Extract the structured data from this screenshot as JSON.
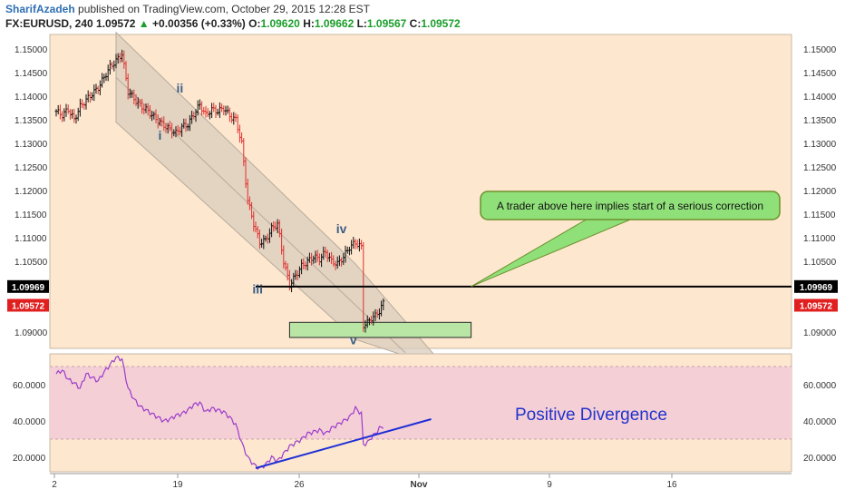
{
  "header": {
    "author": "SharifAzadeh",
    "published": "published on TradingView.com, October 29, 2015 12:28 EST",
    "symbol": "FX:EURUSD, 240",
    "last": "1.09572",
    "change_arrow": "▲",
    "change": "+0.00356 (+0.33%)",
    "o_label": "O:",
    "o_value": "1.09620",
    "h_label": "H:",
    "h_value": "1.09662",
    "l_label": "L:",
    "l_value": "1.09567",
    "c_label": "C:",
    "c_value": "1.09572"
  },
  "colors": {
    "background": "#fde7cf",
    "channel": "#d9ccbc",
    "candle_up": "#111111",
    "candle_down": "#e03030",
    "rsi_band": "#f5cfd6",
    "rsi_line": "#9b3ccb",
    "divergence": "#1f2fd6",
    "callout": "#90e07a",
    "target_box": "#b9e5a5"
  },
  "chart_data": [
    {
      "type": "candlestick",
      "symbol": "FX:EURUSD",
      "timeframe": "240",
      "yticks": [
        "1.15000",
        "1.14500",
        "1.14000",
        "1.13500",
        "1.13000",
        "1.12500",
        "1.12000",
        "1.11500",
        "1.11000",
        "1.10500",
        "1.09000"
      ],
      "ylim": [
        1.0865,
        1.1525
      ],
      "xticks": [
        "2",
        "19",
        "26",
        "Nov",
        "9",
        "16"
      ],
      "close_path": [
        [
          0,
          1.1368
        ],
        [
          3,
          1.136
        ],
        [
          6,
          1.1372
        ],
        [
          9,
          1.135
        ],
        [
          12,
          1.1378
        ],
        [
          15,
          1.1392
        ],
        [
          18,
          1.1405
        ],
        [
          21,
          1.1418
        ],
        [
          24,
          1.144
        ],
        [
          27,
          1.1462
        ],
        [
          30,
          1.1475
        ],
        [
          33,
          1.149
        ],
        [
          36,
          1.141
        ],
        [
          39,
          1.1395
        ],
        [
          42,
          1.138
        ],
        [
          45,
          1.1372
        ],
        [
          48,
          1.136
        ],
        [
          51,
          1.1348
        ],
        [
          54,
          1.1338
        ],
        [
          57,
          1.133
        ],
        [
          60,
          1.1322
        ],
        [
          63,
          1.1335
        ],
        [
          66,
          1.134
        ],
        [
          69,
          1.1362
        ],
        [
          72,
          1.1382
        ],
        [
          75,
          1.136
        ],
        [
          78,
          1.1372
        ],
        [
          81,
          1.1368
        ],
        [
          84,
          1.1375
        ],
        [
          87,
          1.1358
        ],
        [
          90,
          1.135
        ],
        [
          93,
          1.13
        ],
        [
          96,
          1.118
        ],
        [
          99,
          1.113
        ],
        [
          102,
          1.109
        ],
        [
          105,
          1.1095
        ],
        [
          108,
          1.112
        ],
        [
          111,
          1.113
        ],
        [
          114,
          1.105
        ],
        [
          117,
          1.1
        ],
        [
          120,
          1.102
        ],
        [
          123,
          1.104
        ],
        [
          126,
          1.105
        ],
        [
          129,
          1.106
        ],
        [
          132,
          1.1055
        ],
        [
          135,
          1.107
        ],
        [
          138,
          1.105
        ],
        [
          141,
          1.1045
        ],
        [
          144,
          1.106
        ],
        [
          147,
          1.108
        ],
        [
          150,
          1.109
        ],
        [
          153,
          1.108
        ],
        [
          154,
          1.0915
        ],
        [
          156,
          1.092
        ],
        [
          158,
          1.093
        ],
        [
          160,
          1.0935
        ],
        [
          162,
          1.0945
        ],
        [
          164,
          1.0962
        ],
        [
          165,
          1.09572
        ]
      ],
      "annotations": [
        {
          "label": "i",
          "x": 52,
          "price": 1.1308
        },
        {
          "label": "ii",
          "x": 62,
          "price": 1.1408
        },
        {
          "label": "iii",
          "x": 101,
          "price": 1.0982
        },
        {
          "label": "iv",
          "x": 143,
          "price": 1.111
        },
        {
          "label": "v",
          "x": 149,
          "price": 1.0875
        }
      ],
      "channel": {
        "upper": [
          [
            30,
            1.1535
          ],
          [
            150,
            1.1045
          ],
          [
            190,
            1.085
          ]
        ],
        "lower": [
          [
            30,
            1.1345
          ],
          [
            150,
            1.0885
          ],
          [
            175,
            1.085
          ]
        ]
      },
      "horizontal_level": {
        "price": 1.09969,
        "label": "1.09969",
        "x_start": 100,
        "x_end": 338
      },
      "current_price": {
        "price": 1.09572,
        "label": "1.09572"
      },
      "target_box": {
        "x_start": 117,
        "x_end": 208,
        "price_top": 1.0921,
        "price_bottom": 1.0889
      },
      "callout": {
        "text": "A trader above here implies start of a serious correction",
        "anchor_x": 208,
        "anchor_price": 1.09969
      }
    },
    {
      "type": "line",
      "indicator": "RSI",
      "yticks": [
        "60.0000",
        "40.0000",
        "20.0000"
      ],
      "ylim": [
        10,
        78
      ],
      "band": [
        30,
        70
      ],
      "series": [
        {
          "points": [
            [
              0,
              66
            ],
            [
              3,
              68
            ],
            [
              6,
              63
            ],
            [
              9,
              61
            ],
            [
              12,
              58
            ],
            [
              15,
              66
            ],
            [
              18,
              64
            ],
            [
              21,
              62
            ],
            [
              24,
              67
            ],
            [
              27,
              71
            ],
            [
              30,
              75
            ],
            [
              33,
              74
            ],
            [
              36,
              58
            ],
            [
              39,
              52
            ],
            [
              42,
              48
            ],
            [
              45,
              46
            ],
            [
              48,
              44
            ],
            [
              51,
              42
            ],
            [
              54,
              40
            ],
            [
              57,
              41
            ],
            [
              60,
              43
            ],
            [
              63,
              44
            ],
            [
              66,
              46
            ],
            [
              69,
              49
            ],
            [
              72,
              50
            ],
            [
              75,
              45
            ],
            [
              78,
              47
            ],
            [
              81,
              46
            ],
            [
              84,
              45
            ],
            [
              87,
              42
            ],
            [
              90,
              38
            ],
            [
              93,
              28
            ],
            [
              96,
              20
            ],
            [
              99,
              16
            ],
            [
              102,
              14
            ],
            [
              105,
              16
            ],
            [
              108,
              20
            ],
            [
              111,
              18
            ],
            [
              114,
              22
            ],
            [
              117,
              26
            ],
            [
              120,
              28
            ],
            [
              123,
              30
            ],
            [
              126,
              33
            ],
            [
              129,
              34
            ],
            [
              132,
              35
            ],
            [
              135,
              33
            ],
            [
              138,
              36
            ],
            [
              141,
              38
            ],
            [
              144,
              40
            ],
            [
              147,
              42
            ],
            [
              150,
              47
            ],
            [
              153,
              44
            ],
            [
              154,
              27
            ],
            [
              156,
              28
            ],
            [
              158,
              31
            ],
            [
              160,
              33
            ],
            [
              162,
              36
            ],
            [
              164,
              37
            ],
            [
              165,
              37
            ]
          ]
        }
      ],
      "divergence_line": [
        [
          100,
          14
        ],
        [
          188,
          41
        ]
      ],
      "annotation": "Positive Divergence"
    }
  ]
}
